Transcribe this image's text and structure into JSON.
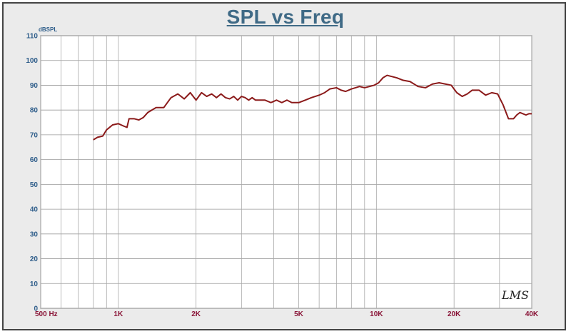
{
  "chart_data": {
    "type": "line",
    "title": "SPL vs Freq",
    "ylabel": "dBSPL",
    "xlabel": "",
    "x_scale": "log",
    "xlim": [
      500,
      40000
    ],
    "ylim": [
      0,
      110
    ],
    "grid": true,
    "x_tick_values": [
      500,
      1000,
      2000,
      5000,
      10000,
      20000,
      40000
    ],
    "x_tick_labels": [
      "500  Hz",
      "1K",
      "2K",
      "5K",
      "10K",
      "20K",
      "40K"
    ],
    "y_ticks": [
      0,
      10,
      20,
      30,
      40,
      50,
      60,
      70,
      80,
      90,
      100,
      110
    ],
    "series": [
      {
        "color": "#8b1a1a",
        "x": [
          800,
          830,
          870,
          900,
          950,
          1000,
          1050,
          1080,
          1100,
          1150,
          1200,
          1250,
          1300,
          1400,
          1500,
          1600,
          1700,
          1800,
          1900,
          2000,
          2100,
          2200,
          2300,
          2400,
          2500,
          2600,
          2700,
          2800,
          2900,
          3000,
          3100,
          3200,
          3300,
          3400,
          3500,
          3700,
          3900,
          4100,
          4300,
          4500,
          4700,
          5000,
          5300,
          5600,
          6000,
          6300,
          6600,
          7000,
          7300,
          7600,
          8000,
          8300,
          8600,
          9000,
          9400,
          9800,
          10200,
          10600,
          11000,
          11500,
          12000,
          12700,
          13500,
          14500,
          15500,
          16500,
          17500,
          18500,
          19500,
          20500,
          21500,
          22500,
          23500,
          25000,
          26500,
          28000,
          29500,
          31000,
          32500,
          34000,
          35000,
          36000,
          37000,
          38000,
          39000,
          40000
        ],
        "y": [
          68,
          69,
          69.5,
          72,
          74,
          74.5,
          73.5,
          73,
          76.5,
          76.5,
          76,
          77,
          79,
          81,
          81,
          85,
          86.5,
          84.5,
          87,
          84,
          87,
          85.5,
          86.5,
          85,
          86.5,
          85,
          84.5,
          85.5,
          84,
          85.5,
          85,
          84,
          85,
          84,
          84,
          84,
          83,
          84,
          83,
          84,
          83,
          83,
          84,
          85,
          86,
          87,
          88.5,
          89,
          88,
          87.5,
          88.5,
          89,
          89.5,
          89,
          89.5,
          90,
          91,
          93,
          94,
          93.5,
          93,
          92,
          91.5,
          89.5,
          89,
          90.5,
          91,
          90.5,
          90,
          87,
          85.5,
          86.5,
          88,
          88,
          86,
          87,
          86.5,
          82,
          76.5,
          76.5,
          78,
          79,
          78.5,
          78,
          78.5,
          78.5
        ]
      }
    ]
  },
  "watermark": "LMS"
}
